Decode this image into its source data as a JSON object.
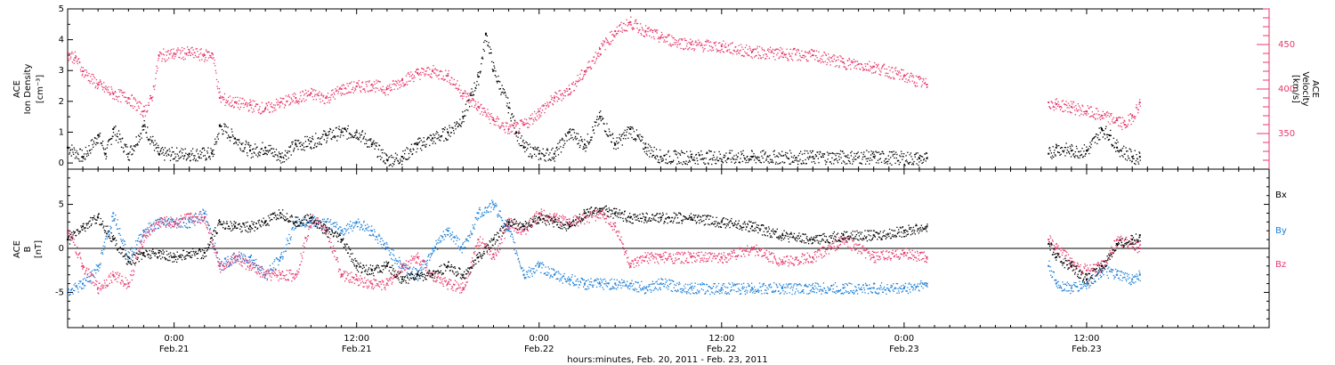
{
  "x_axis": {
    "title": "hours:minutes, Feb. 20, 2011 - Feb. 23, 2011",
    "ticks": [
      {
        "hour": 24,
        "time": "0:00",
        "date": "Feb.21"
      },
      {
        "hour": 36,
        "time": "12:00",
        "date": "Feb.21"
      },
      {
        "hour": 48,
        "time": "0:00",
        "date": "Feb.22"
      },
      {
        "hour": 60,
        "time": "12:00",
        "date": "Feb.22"
      },
      {
        "hour": 72,
        "time": "0:00",
        "date": "Feb.23"
      },
      {
        "hour": 84,
        "time": "12:00",
        "date": "Feb.23"
      }
    ],
    "range": [
      17.0,
      96.0
    ]
  },
  "panels": {
    "top": {
      "left_title": "ACE",
      "left_label": "Ion Density",
      "left_unit": "[cm⁻³]",
      "left_ticks": [
        "0",
        "1",
        "2",
        "3",
        "4",
        "5"
      ],
      "right_title": "ACE",
      "right_label": "Velocity",
      "right_unit": "[km/s]",
      "right_ticks": [
        "350",
        "400",
        "450"
      ]
    },
    "bottom": {
      "title": "ACE",
      "label": "B",
      "unit": "[nT]",
      "ticks": [
        "-5",
        "0",
        "5"
      ],
      "legend": [
        "Bx",
        "By",
        "Bz"
      ]
    }
  },
  "colors": {
    "density": "#000000",
    "velocity": "#e8386c",
    "bx": "#000000",
    "by": "#1a7fd8",
    "bz": "#e8386c"
  },
  "chart_data": [
    {
      "type": "scatter",
      "title": "",
      "xlabel": "hours:minutes, Feb. 20, 2011 - Feb. 23, 2011",
      "ylabel": "Ion Density [cm⁻³]",
      "y2label": "Velocity [km/s]",
      "xlim": [
        17.0,
        96.0
      ],
      "ylim": [
        -0.2,
        5.0
      ],
      "y2lim": [
        310,
        490
      ],
      "data_gap_hours": [
        73.5,
        81.5
      ],
      "series": [
        {
          "name": "Ion Density",
          "axis": "left",
          "x": [
            17.0,
            18.0,
            19.0,
            19.5,
            20.0,
            21.0,
            22.0,
            23.0,
            25.0,
            26.5,
            27.0,
            28.0,
            29.0,
            30.0,
            31.0,
            32.0,
            33.0,
            34.0,
            35.0,
            36.0,
            37.0,
            38.0,
            39.0,
            40.0,
            41.0,
            42.0,
            43.0,
            43.5,
            44.0,
            44.5,
            45.0,
            46.0,
            46.5,
            47.0,
            48.0,
            49.0,
            50.0,
            51.0,
            52.0,
            53.0,
            54.0,
            55.0,
            56.0,
            58.0,
            62.0,
            66.0,
            70.0,
            73.0,
            73.5,
            81.5,
            82.0,
            83.0,
            84.0,
            85.0,
            85.5,
            86.0,
            87.0,
            87.5
          ],
          "y": [
            0.5,
            0.2,
            0.9,
            0.3,
            1.1,
            0.3,
            1.2,
            0.3,
            0.3,
            0.3,
            1.2,
            0.8,
            0.4,
            0.5,
            0.2,
            0.6,
            0.7,
            0.9,
            1.0,
            1.0,
            0.6,
            0.1,
            0.2,
            0.6,
            0.8,
            1.0,
            1.5,
            2.2,
            2.8,
            4.2,
            3.0,
            1.8,
            1.0,
            0.5,
            0.3,
            0.3,
            1.0,
            0.6,
            1.5,
            0.6,
            1.1,
            0.5,
            0.2,
            0.2,
            0.2,
            0.2,
            0.2,
            0.15,
            0.15,
            0.3,
            0.5,
            0.4,
            0.4,
            1.1,
            0.9,
            0.5,
            0.2,
            0.2
          ]
        },
        {
          "name": "Velocity",
          "axis": "right",
          "x": [
            17.0,
            17.5,
            18.0,
            19.0,
            20.0,
            21.0,
            22.0,
            22.5,
            23.0,
            24.0,
            25.0,
            26.0,
            26.5,
            27.0,
            28.0,
            29.0,
            30.0,
            31.0,
            32.0,
            33.0,
            34.0,
            35.0,
            36.0,
            37.0,
            38.0,
            39.0,
            40.0,
            41.0,
            42.0,
            43.0,
            44.0,
            45.0,
            46.0,
            47.0,
            48.0,
            49.0,
            50.0,
            51.0,
            52.0,
            53.0,
            54.0,
            55.0,
            56.0,
            58.0,
            60.0,
            62.0,
            64.0,
            66.0,
            68.0,
            70.0,
            72.0,
            73.5,
            81.5,
            82.0,
            83.0,
            84.0,
            85.0,
            86.0,
            86.5,
            87.0,
            87.5
          ],
          "y": [
            440,
            435,
            420,
            405,
            395,
            390,
            375,
            390,
            438,
            440,
            441,
            438,
            440,
            390,
            385,
            382,
            378,
            385,
            390,
            395,
            390,
            400,
            403,
            405,
            400,
            410,
            418,
            420,
            415,
            395,
            380,
            365,
            355,
            360,
            375,
            390,
            400,
            420,
            445,
            465,
            475,
            465,
            458,
            450,
            448,
            442,
            440,
            438,
            430,
            425,
            415,
            405,
            385,
            383,
            380,
            375,
            370,
            365,
            360,
            370,
            385
          ]
        }
      ]
    },
    {
      "type": "scatter",
      "title": "",
      "xlabel": "hours:minutes, Feb. 20, 2011 - Feb. 23, 2011",
      "ylabel": "B [nT]",
      "xlim": [
        17.0,
        96.0
      ],
      "ylim": [
        -9,
        9
      ],
      "data_gap_hours": [
        73.5,
        81.5
      ],
      "series": [
        {
          "name": "Bx",
          "x": [
            17.0,
            18.0,
            19.0,
            20.0,
            21.0,
            22.0,
            23.0,
            24.0,
            25.0,
            26.0,
            27.0,
            28.0,
            29.0,
            30.0,
            31.0,
            32.0,
            33.0,
            34.0,
            35.0,
            36.0,
            37.0,
            38.0,
            39.0,
            40.0,
            41.0,
            42.0,
            43.0,
            44.0,
            45.0,
            46.0,
            47.0,
            48.0,
            49.0,
            50.0,
            51.0,
            52.0,
            53.0,
            54.0,
            55.0,
            56.0,
            58.0,
            60.0,
            62.0,
            64.0,
            66.0,
            68.0,
            70.0,
            72.0,
            73.5,
            81.5,
            82.0,
            83.0,
            84.0,
            85.0,
            86.0,
            87.0,
            87.5
          ],
          "y": [
            1.0,
            2.5,
            3.5,
            1.0,
            -1.5,
            -0.5,
            -0.5,
            -1.0,
            -0.5,
            -0.5,
            3.0,
            2.5,
            2.5,
            3.0,
            4.0,
            3.0,
            3.5,
            2.0,
            1.0,
            -2.0,
            -2.5,
            -2.0,
            -3.5,
            -3.0,
            -3.0,
            -2.0,
            -3.0,
            -1.0,
            1.0,
            3.0,
            2.5,
            3.5,
            3.0,
            2.5,
            4.0,
            4.5,
            4.0,
            3.5,
            3.5,
            3.5,
            3.5,
            3.0,
            2.5,
            1.5,
            1.0,
            1.5,
            1.5,
            2.0,
            2.5,
            0.5,
            -1.0,
            -2.0,
            -3.5,
            -2.0,
            0.5,
            1.0,
            1.5
          ]
        },
        {
          "name": "By",
          "x": [
            17.0,
            18.0,
            19.0,
            20.0,
            21.0,
            22.0,
            23.0,
            24.0,
            25.0,
            26.0,
            27.0,
            28.0,
            29.0,
            30.0,
            31.0,
            32.0,
            33.0,
            34.0,
            35.0,
            36.0,
            37.0,
            38.0,
            39.0,
            40.0,
            41.0,
            42.0,
            43.0,
            44.0,
            45.0,
            46.0,
            47.0,
            48.0,
            49.0,
            50.0,
            51.0,
            52.0,
            53.0,
            54.0,
            55.0,
            56.0,
            58.0,
            60.0,
            62.0,
            64.0,
            66.0,
            68.0,
            70.0,
            72.0,
            73.5,
            81.5,
            82.0,
            83.0,
            84.0,
            85.0,
            86.0,
            87.0,
            87.5
          ],
          "y": [
            -5.0,
            -4.0,
            -2.0,
            4.0,
            -1.0,
            2.0,
            3.0,
            3.0,
            3.0,
            4.0,
            -2.0,
            -1.0,
            -1.0,
            -3.0,
            -1.0,
            3.0,
            3.0,
            3.0,
            2.0,
            3.0,
            2.0,
            0.0,
            -2.0,
            -3.0,
            0.0,
            2.0,
            0.0,
            4.0,
            5.0,
            2.0,
            -3.0,
            -2.0,
            -3.0,
            -3.5,
            -4.0,
            -4.0,
            -4.0,
            -4.0,
            -4.5,
            -4.0,
            -4.5,
            -4.5,
            -4.5,
            -4.5,
            -4.5,
            -4.5,
            -4.5,
            -4.5,
            -4.0,
            -2.0,
            -4.0,
            -4.5,
            -4.0,
            -2.5,
            -3.0,
            -3.5,
            -3.0
          ]
        },
        {
          "name": "Bz",
          "x": [
            17.0,
            18.0,
            19.0,
            20.0,
            21.0,
            22.0,
            23.0,
            24.0,
            25.0,
            26.0,
            27.0,
            28.0,
            29.0,
            30.0,
            31.0,
            32.0,
            33.0,
            34.0,
            35.0,
            36.0,
            37.0,
            38.0,
            39.0,
            40.0,
            41.0,
            42.0,
            43.0,
            44.0,
            45.0,
            46.0,
            47.0,
            48.0,
            49.0,
            50.0,
            51.0,
            52.0,
            53.0,
            54.0,
            55.0,
            56.0,
            58.0,
            60.0,
            62.0,
            64.0,
            66.0,
            68.0,
            70.0,
            72.0,
            73.5,
            81.5,
            82.0,
            83.0,
            84.0,
            85.0,
            86.0,
            87.0,
            87.5
          ],
          "y": [
            2.0,
            -2.0,
            -4.5,
            -3.0,
            -4.0,
            1.5,
            3.0,
            3.0,
            3.5,
            3.5,
            -2.0,
            -1.0,
            -2.0,
            -3.0,
            -3.0,
            -3.0,
            3.5,
            2.0,
            -3.0,
            -3.5,
            -4.0,
            -4.0,
            -2.0,
            -1.0,
            -3.0,
            -4.0,
            -4.5,
            1.0,
            -1.0,
            3.0,
            2.0,
            4.0,
            3.5,
            3.0,
            3.5,
            4.0,
            2.5,
            -2.0,
            -1.0,
            -1.0,
            -1.0,
            -1.0,
            0.0,
            -1.5,
            -1.0,
            1.0,
            -1.0,
            -0.5,
            -1.0,
            1.0,
            0.0,
            -1.5,
            -2.5,
            -2.0,
            1.0,
            0.5,
            0.0
          ]
        }
      ],
      "legend_position": "right"
    }
  ]
}
